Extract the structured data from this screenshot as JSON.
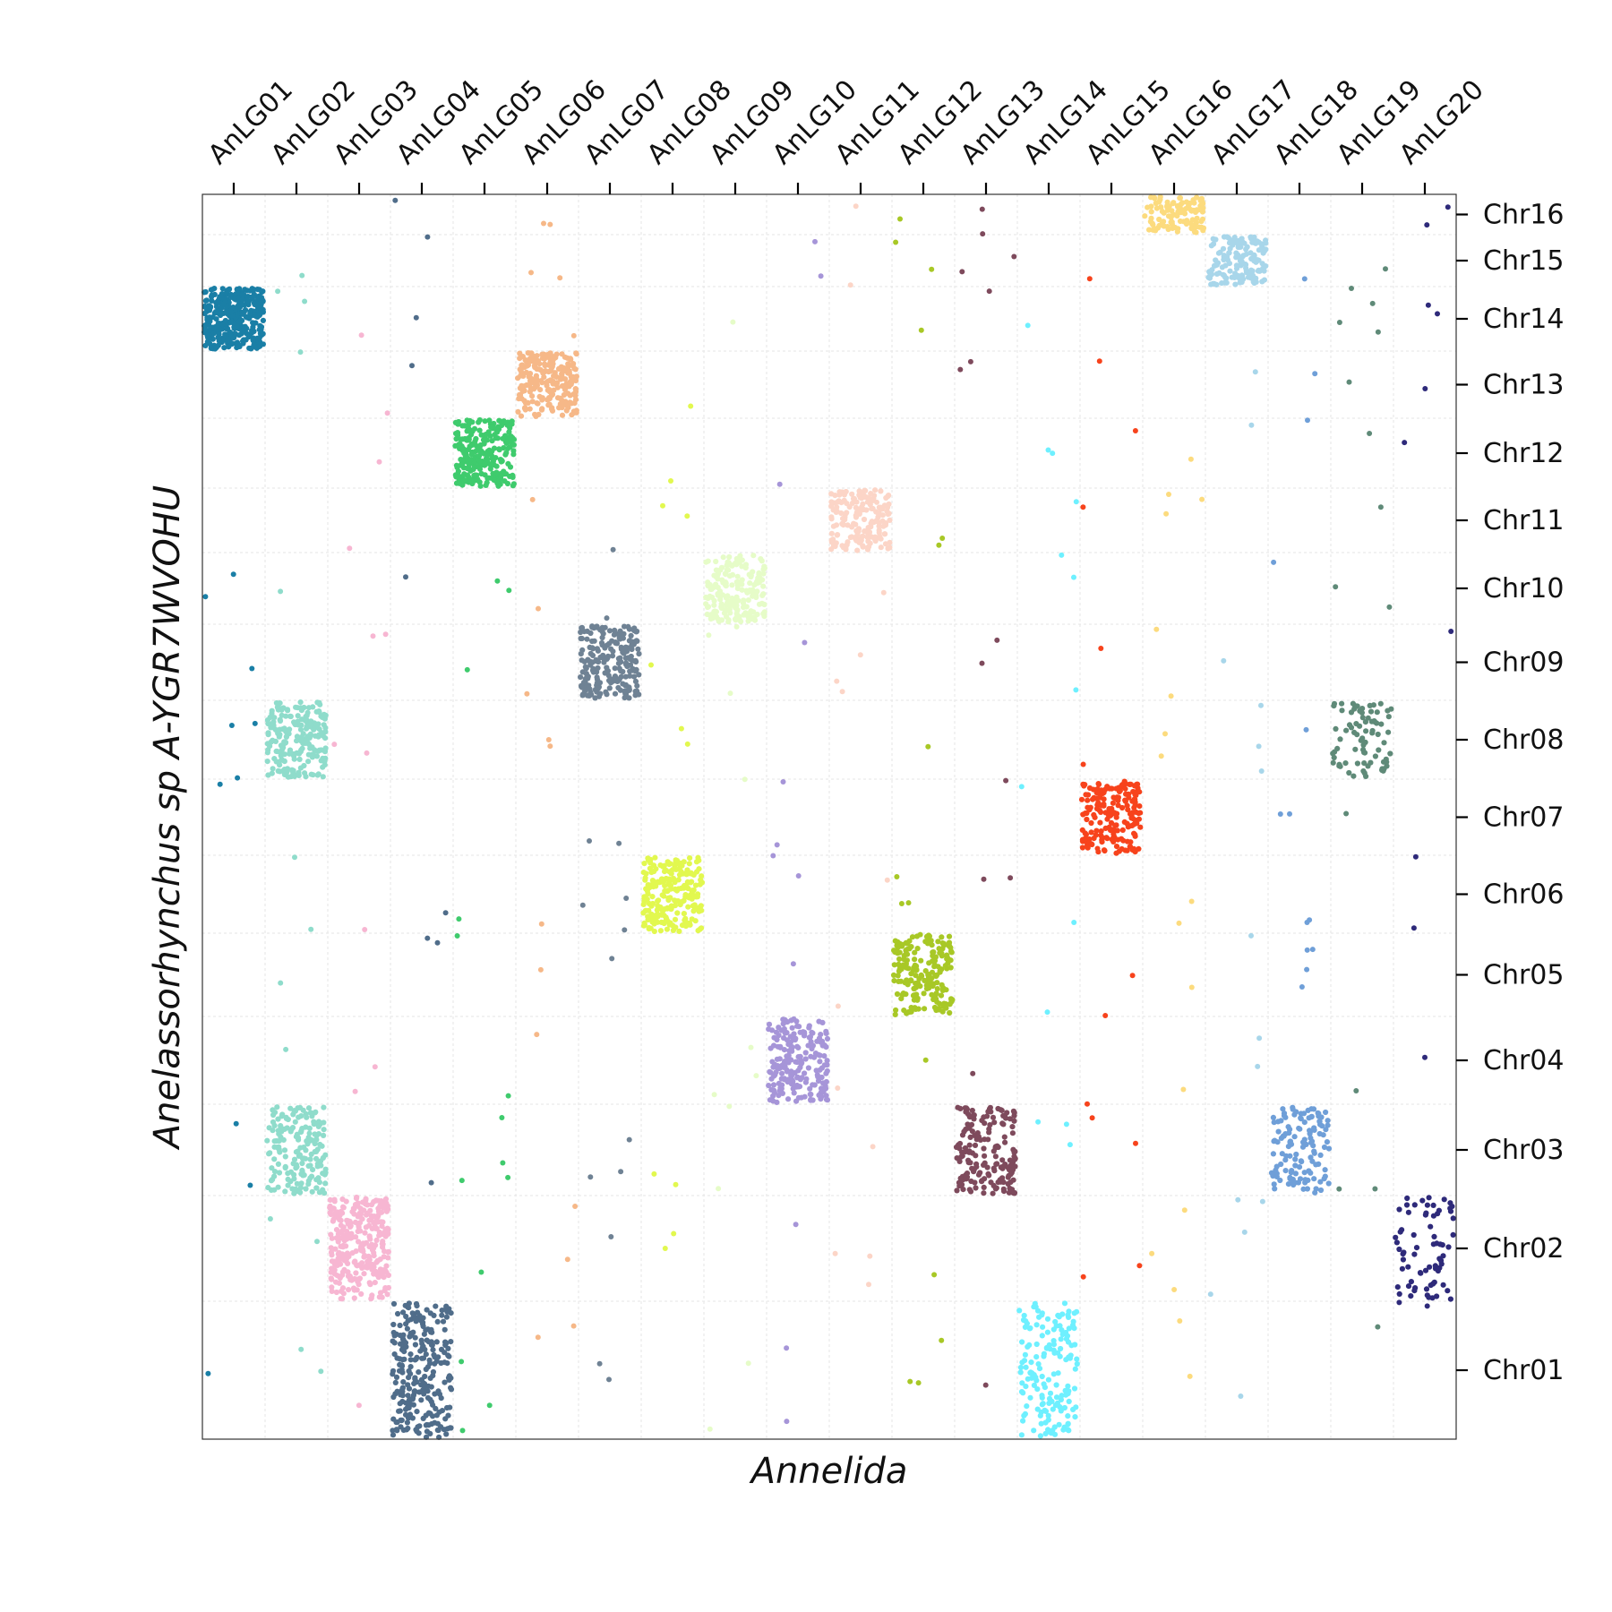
{
  "chart_data": {
    "type": "scatter",
    "title": "",
    "xlabel": "Annelida",
    "ylabel": "Anelassorhynchus sp A-YGR7WVOHU",
    "x_tick_position": "top",
    "y_tick_position": "right",
    "grid": true,
    "categories_x": [
      "AnLG01",
      "AnLG02",
      "AnLG03",
      "AnLG04",
      "AnLG05",
      "AnLG06",
      "AnLG07",
      "AnLG08",
      "AnLG09",
      "AnLG10",
      "AnLG11",
      "AnLG12",
      "AnLG13",
      "AnLG14",
      "AnLG15",
      "AnLG16",
      "AnLG17",
      "AnLG18",
      "AnLG19",
      "AnLG20"
    ],
    "categories_y": [
      "Chr01",
      "Chr02",
      "Chr03",
      "Chr04",
      "Chr05",
      "Chr06",
      "Chr07",
      "Chr08",
      "Chr09",
      "Chr10",
      "Chr11",
      "Chr12",
      "Chr13",
      "Chr14",
      "Chr15",
      "Chr16"
    ],
    "colors": {
      "AnLG01": "#1a7fa6",
      "AnLG02": "#8fdccb",
      "AnLG03": "#f7b6d2",
      "AnLG04": "#506d8a",
      "AnLG05": "#3fcb6d",
      "AnLG06": "#f6b888",
      "AnLG07": "#6f8294",
      "AnLG08": "#e2f84f",
      "AnLG09": "#e6fcc8",
      "AnLG10": "#a695d8",
      "AnLG11": "#fcd5c7",
      "AnLG12": "#a8c826",
      "AnLG13": "#7e4a5c",
      "AnLG14": "#6ef0ff",
      "AnLG15": "#f7431c",
      "AnLG16": "#fcdb7e",
      "AnLG17": "#a8d6ea",
      "AnLG18": "#6f9fd8",
      "AnLG19": "#5f8a78",
      "AnLG20": "#2e2a7a",
      "frame": "#333333",
      "grid": "#e6e6e6"
    },
    "blocks": [
      {
        "x": "AnLG01",
        "y": "Chr14",
        "count": 330
      },
      {
        "x": "AnLG02",
        "y": "Chr08",
        "count": 210
      },
      {
        "x": "AnLG02",
        "y": "Chr03",
        "count": 180
      },
      {
        "x": "AnLG03",
        "y": "Chr02",
        "count": 300
      },
      {
        "x": "AnLG04",
        "y": "Chr01",
        "count": 260
      },
      {
        "x": "AnLG05",
        "y": "Chr12",
        "count": 250
      },
      {
        "x": "AnLG06",
        "y": "Chr13",
        "count": 230
      },
      {
        "x": "AnLG07",
        "y": "Chr09",
        "count": 220
      },
      {
        "x": "AnLG08",
        "y": "Chr06",
        "count": 220
      },
      {
        "x": "AnLG09",
        "y": "Chr10",
        "count": 190
      },
      {
        "x": "AnLG10",
        "y": "Chr04",
        "count": 200
      },
      {
        "x": "AnLG11",
        "y": "Chr11",
        "count": 180
      },
      {
        "x": "AnLG12",
        "y": "Chr05",
        "count": 190
      },
      {
        "x": "AnLG13",
        "y": "Chr03",
        "count": 170
      },
      {
        "x": "AnLG14",
        "y": "Chr01",
        "count": 160
      },
      {
        "x": "AnLG15",
        "y": "Chr07",
        "count": 190
      },
      {
        "x": "AnLG16",
        "y": "Chr16",
        "count": 110
      },
      {
        "x": "AnLG17",
        "y": "Chr15",
        "count": 150
      },
      {
        "x": "AnLG18",
        "y": "Chr03",
        "count": 130
      },
      {
        "x": "AnLG19",
        "y": "Chr08",
        "count": 80
      },
      {
        "x": "AnLG20",
        "y": "Chr02",
        "count": 70
      }
    ]
  }
}
